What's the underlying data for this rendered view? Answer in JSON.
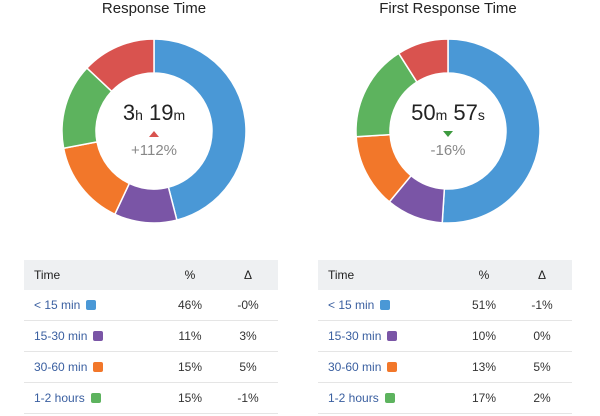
{
  "colors": {
    "blue": "#4a98d6",
    "purple": "#7a55a6",
    "orange": "#f2772a",
    "green": "#5db35e",
    "red": "#d9534f"
  },
  "panels": [
    {
      "title": "Response Time",
      "center": {
        "v1": "3",
        "u1": "h",
        "v2": "19",
        "u2": "m",
        "trend": "up",
        "delta": "+112%"
      },
      "headers": {
        "time": "Time",
        "percent": "%",
        "delta": "Δ"
      },
      "rows": [
        {
          "label": "< 15 min",
          "percent": "46%",
          "delta": "-0%",
          "color": "#4a98d6"
        },
        {
          "label": "15-30 min",
          "percent": "11%",
          "delta": "3%",
          "color": "#7a55a6"
        },
        {
          "label": "30-60 min",
          "percent": "15%",
          "delta": "5%",
          "color": "#f2772a"
        },
        {
          "label": "1-2 hours",
          "percent": "15%",
          "delta": "-1%",
          "color": "#5db35e"
        }
      ],
      "slices": [
        {
          "value": 46,
          "color": "#4a98d6"
        },
        {
          "value": 11,
          "color": "#7a55a6"
        },
        {
          "value": 15,
          "color": "#f2772a"
        },
        {
          "value": 15,
          "color": "#5db35e"
        },
        {
          "value": 13,
          "color": "#d9534f"
        }
      ]
    },
    {
      "title": "First Response Time",
      "center": {
        "v1": "50",
        "u1": "m",
        "v2": "57",
        "u2": "s",
        "trend": "down",
        "delta": "-16%"
      },
      "headers": {
        "time": "Time",
        "percent": "%",
        "delta": "Δ"
      },
      "rows": [
        {
          "label": "< 15 min",
          "percent": "51%",
          "delta": "-1%",
          "color": "#4a98d6"
        },
        {
          "label": "15-30 min",
          "percent": "10%",
          "delta": "0%",
          "color": "#7a55a6"
        },
        {
          "label": "30-60 min",
          "percent": "13%",
          "delta": "5%",
          "color": "#f2772a"
        },
        {
          "label": "1-2 hours",
          "percent": "17%",
          "delta": "2%",
          "color": "#5db35e"
        }
      ],
      "slices": [
        {
          "value": 51,
          "color": "#4a98d6"
        },
        {
          "value": 10,
          "color": "#7a55a6"
        },
        {
          "value": 13,
          "color": "#f2772a"
        },
        {
          "value": 17,
          "color": "#5db35e"
        },
        {
          "value": 9,
          "color": "#d9534f"
        }
      ]
    }
  ]
}
